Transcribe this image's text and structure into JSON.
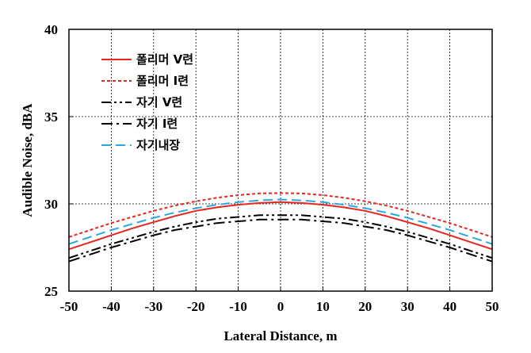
{
  "chart_data": {
    "type": "line",
    "xlabel": "Lateral Distance, m",
    "ylabel": "Audible Noise, dBA",
    "xlim": [
      -50,
      50
    ],
    "ylim": [
      25,
      40
    ],
    "xticks": [
      -50,
      -40,
      -30,
      -20,
      -10,
      0,
      10,
      20,
      30,
      40,
      50
    ],
    "yticks": [
      25,
      30,
      35,
      40
    ],
    "grid": true,
    "legend_position": "top-left",
    "x": [
      -50,
      -45,
      -40,
      -35,
      -30,
      -25,
      -20,
      -15,
      -10,
      -5,
      0,
      5,
      10,
      15,
      20,
      25,
      30,
      35,
      40,
      45,
      50
    ],
    "series": [
      {
        "name": "폴리머 V련",
        "color": "#e8251f",
        "dash": "solid",
        "values": [
          27.4,
          27.8,
          28.2,
          28.6,
          28.95,
          29.3,
          29.6,
          29.8,
          29.95,
          30.05,
          30.1,
          30.05,
          29.95,
          29.8,
          29.6,
          29.3,
          28.95,
          28.6,
          28.2,
          27.8,
          27.4
        ]
      },
      {
        "name": "폴리머 I련",
        "color": "#e8251f",
        "dash": "short-dash",
        "values": [
          28.1,
          28.5,
          28.9,
          29.25,
          29.6,
          29.9,
          30.15,
          30.35,
          30.5,
          30.6,
          30.62,
          30.6,
          30.5,
          30.35,
          30.15,
          29.9,
          29.6,
          29.25,
          28.9,
          28.5,
          28.1
        ]
      },
      {
        "name": "자기 V련",
        "color": "#000000",
        "dash": "dash-dot-dot",
        "values": [
          26.9,
          27.3,
          27.7,
          28.05,
          28.4,
          28.7,
          28.95,
          29.15,
          29.25,
          29.35,
          29.35,
          29.35,
          29.25,
          29.15,
          28.95,
          28.7,
          28.4,
          28.05,
          27.7,
          27.3,
          26.9
        ]
      },
      {
        "name": "자기 I련",
        "color": "#000000",
        "dash": "dash-dot",
        "values": [
          26.7,
          27.1,
          27.5,
          27.85,
          28.2,
          28.5,
          28.7,
          28.9,
          29.0,
          29.1,
          29.1,
          29.1,
          29.0,
          28.9,
          28.7,
          28.5,
          28.2,
          27.85,
          27.5,
          27.1,
          26.7
        ]
      },
      {
        "name": "자기내장",
        "color": "#2aa8e0",
        "dash": "long-dash",
        "values": [
          27.7,
          28.1,
          28.5,
          28.85,
          29.2,
          29.5,
          29.75,
          29.95,
          30.1,
          30.2,
          30.25,
          30.2,
          30.1,
          29.95,
          29.75,
          29.5,
          29.2,
          28.85,
          28.5,
          28.1,
          27.7
        ]
      }
    ]
  }
}
